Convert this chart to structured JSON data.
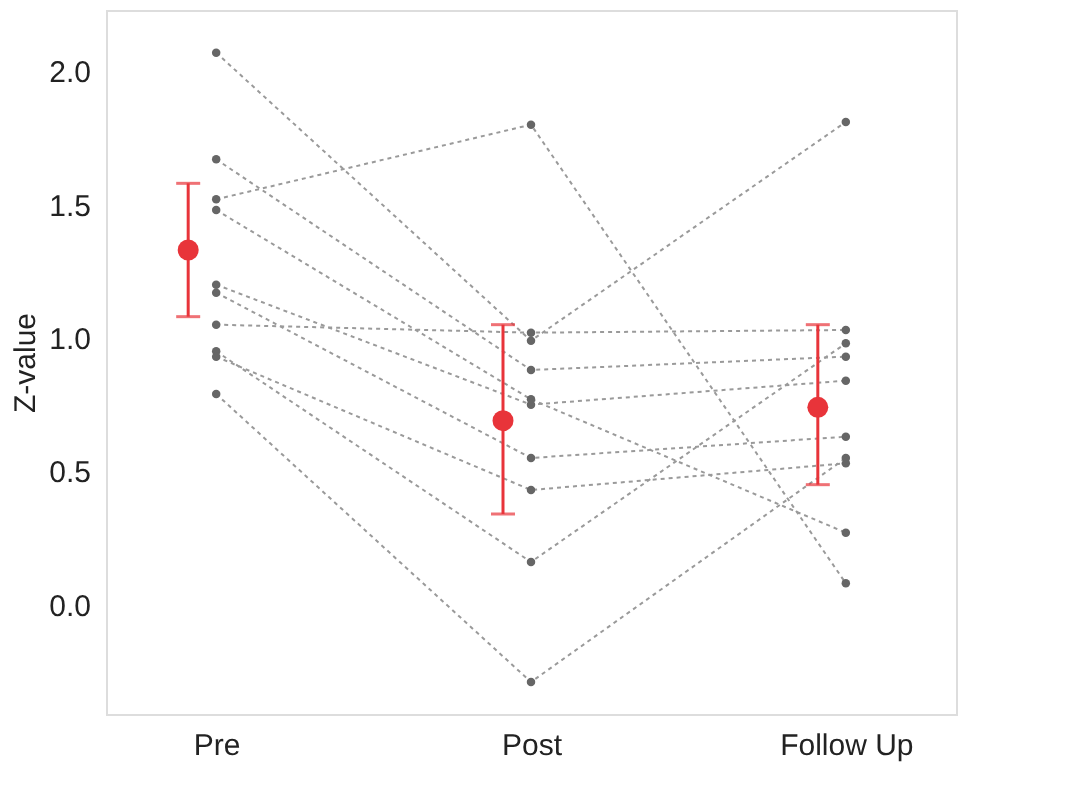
{
  "chart_data": {
    "type": "line",
    "ylabel": "Z-value",
    "categories": [
      "Pre",
      "Post",
      "Follow Up"
    ],
    "ylim": [
      -0.41,
      2.23
    ],
    "yticks": [
      {
        "value": 0,
        "label": "0.0"
      },
      {
        "value": 0.5,
        "label": "0.5"
      },
      {
        "value": 1,
        "label": "1.0"
      },
      {
        "value": 1.5,
        "label": "1.5"
      },
      {
        "value": 2,
        "label": "2.0"
      }
    ],
    "marker": "circle",
    "line_style": "dotted",
    "series": [
      {
        "color": "#9a9a9a",
        "values": [
          2.07,
          0.99,
          1.81
        ]
      },
      {
        "color": "#9a9a9a",
        "values": [
          1.67,
          0.88,
          0.93
        ]
      },
      {
        "color": "#9a9a9a",
        "values": [
          1.52,
          1.8,
          0.08
        ]
      },
      {
        "color": "#9a9a9a",
        "values": [
          1.48,
          0.77,
          0.27
        ]
      },
      {
        "color": "#9a9a9a",
        "values": [
          1.2,
          0.75,
          0.84
        ]
      },
      {
        "color": "#9a9a9a",
        "values": [
          1.17,
          0.55,
          0.63
        ]
      },
      {
        "color": "#9a9a9a",
        "values": [
          1.05,
          1.02,
          1.03
        ]
      },
      {
        "color": "#9a9a9a",
        "values": [
          0.95,
          0.16,
          0.98
        ]
      },
      {
        "color": "#9a9a9a",
        "values": [
          0.93,
          0.43,
          0.53
        ]
      },
      {
        "color": "#9a9a9a",
        "values": [
          0.79,
          -0.29,
          0.55
        ]
      },
      {
        "type": "scatter",
        "color": "#e8343a",
        "values": [
          1.33,
          0.69,
          0.74
        ],
        "errors": [
          [
            1.08,
            1.58
          ],
          [
            0.34,
            1.05
          ],
          [
            0.45,
            1.05
          ]
        ]
      }
    ]
  }
}
